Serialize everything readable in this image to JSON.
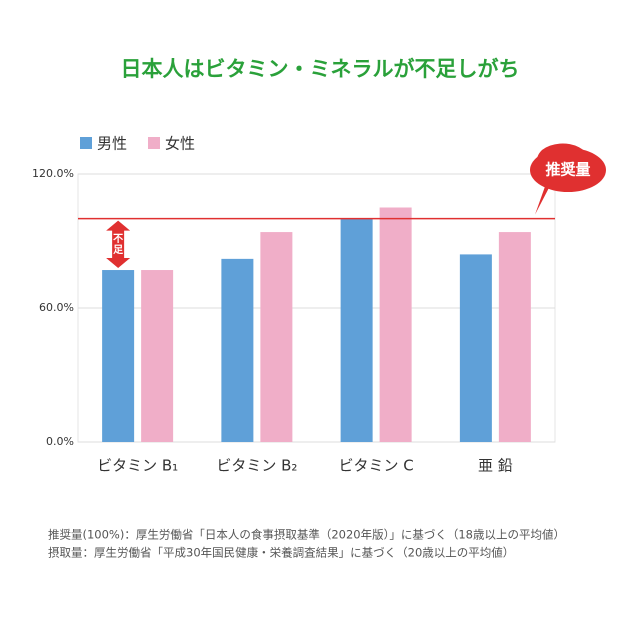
{
  "chart_data": {
    "type": "bar",
    "title": "日本人はビタミン・ミネラルが不足しがち",
    "categories": [
      "ビタミン B₁",
      "ビタミン B₂",
      "ビタミン C",
      "亜 鉛"
    ],
    "series": [
      {
        "name": "男性",
        "color": "#5fa0d8",
        "values": [
          77,
          82,
          100,
          84
        ]
      },
      {
        "name": "女性",
        "color": "#f0aec8",
        "values": [
          77,
          94,
          105,
          94
        ]
      }
    ],
    "ylim": [
      0,
      120
    ],
    "yticks": [
      {
        "value": 0,
        "label": "0.0%"
      },
      {
        "value": 60,
        "label": "60.0%"
      },
      {
        "value": 120,
        "label": "120.0%"
      }
    ],
    "grid": true,
    "reference_line": {
      "value": 100,
      "label": "推奨量",
      "color": "#e03030"
    },
    "annotation": "不足",
    "notes": [
      "推奨量(100%)：厚生労働省「日本人の食事摂取基準（2020年版）」に基づく（18歳以上の平均値）",
      "摂取量：厚生労働省「平成30年国民健康・栄養調査結果」に基づく（20歳以上の平均値）"
    ]
  }
}
